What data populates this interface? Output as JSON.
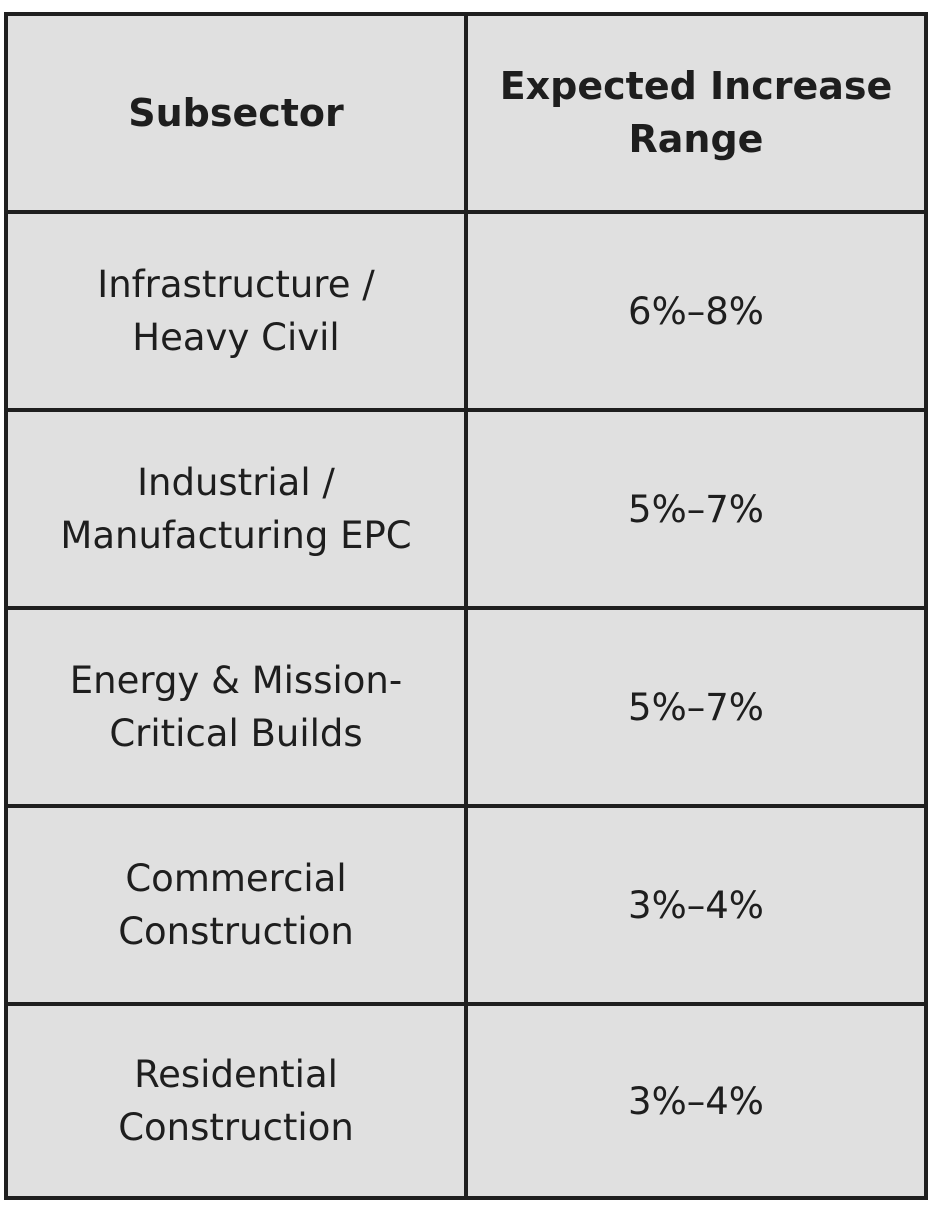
{
  "table": {
    "headers": {
      "subsector": "Subsector",
      "range": "Expected Increase\nRange"
    },
    "rows": [
      {
        "subsector": "Infrastructure /\nHeavy Civil",
        "range": "6%–8%"
      },
      {
        "subsector": "Industrial /\nManufacturing EPC",
        "range": "5%–7%"
      },
      {
        "subsector": "Energy & Mission-\nCritical Builds",
        "range": "5%–7%"
      },
      {
        "subsector": "Commercial\nConstruction",
        "range": "3%–4%"
      },
      {
        "subsector": "Residential\nConstruction",
        "range": "3%–4%"
      }
    ]
  }
}
